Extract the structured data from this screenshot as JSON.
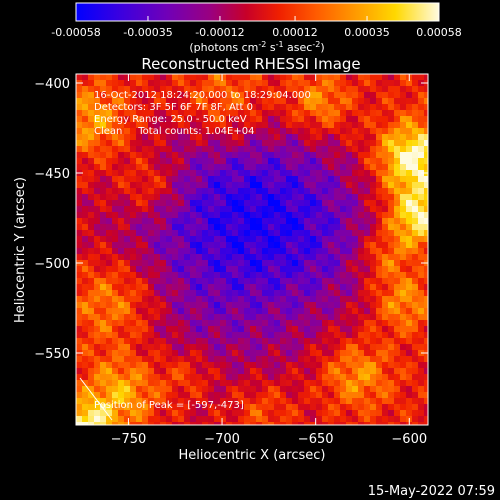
{
  "chart_data": {
    "type": "heatmap",
    "title": "Reconstructed RHESSI Image",
    "xlabel": "Heliocentric X (arcsec)",
    "ylabel": "Heliocentric Y (arcsec)",
    "xlim": [
      -778,
      -590
    ],
    "ylim": [
      -590,
      -395
    ],
    "x_ticks": [
      -750,
      -700,
      -650,
      -600
    ],
    "y_ticks": [
      -400,
      -450,
      -500,
      -550
    ],
    "colorbar": {
      "range": [
        -0.00058,
        0.00058
      ],
      "ticks": [
        "-0.00058",
        "-0.00035",
        "-0.00012",
        "0.00012",
        "0.00035",
        "0.00058"
      ],
      "label_parts": {
        "a": "(photons cm",
        "b": "-2",
        "c": " s",
        "d": "-1",
        "e": " asec",
        "f": "-2",
        "g": ")"
      },
      "colors": [
        "#0000ff",
        "#3a00e0",
        "#7000b8",
        "#9a0080",
        "#c80028",
        "#f02000",
        "#ff5a00",
        "#ff9a00",
        "#ffd800",
        "#fffbe0"
      ]
    },
    "annotations": [
      "16-Oct-2012 18:24:20.000 to 18:29:04.000",
      "Detectors: 3F 5F 6F 7F 8F, Att 0",
      "Energy Range: 25.0 - 50.0 keV",
      "Clean     Total counts: 1.04E+04"
    ],
    "peak_label": "Position of Peak = [-597,-473]",
    "peak": [
      -597,
      -473
    ],
    "grid": false
  },
  "footer": {
    "timestamp": "15-May-2022 07:59"
  }
}
